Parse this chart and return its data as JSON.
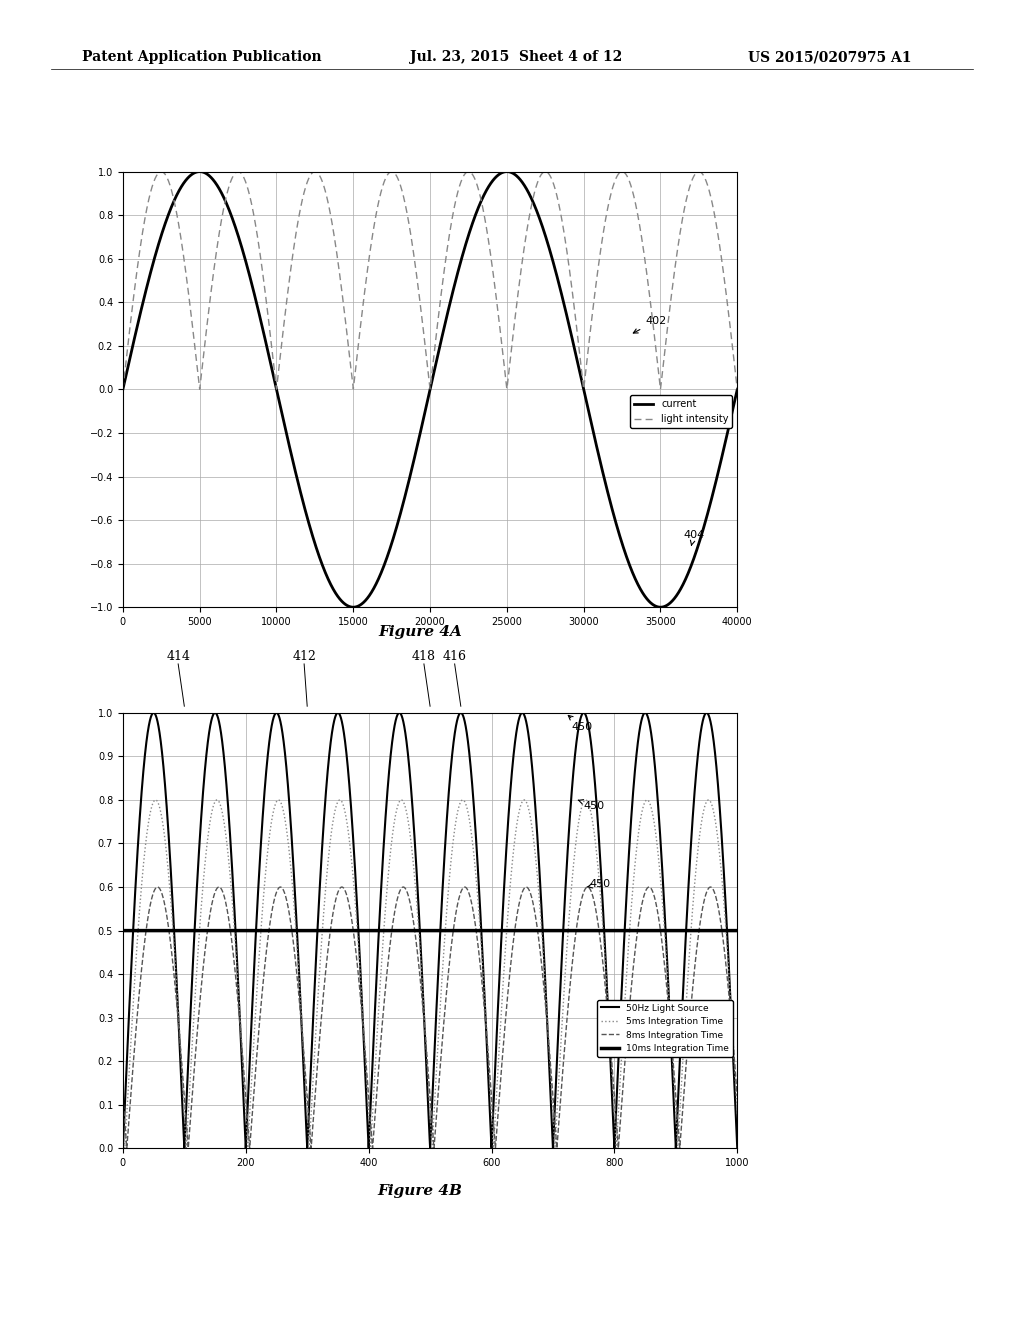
{
  "header_left": "Patent Application Publication",
  "header_mid": "Jul. 23, 2015  Sheet 4 of 12",
  "header_right": "US 2015/0207975 A1",
  "fig4a_title": "Figure 4A",
  "fig4b_title": "Figure 4B",
  "fig4a_xlim": [
    0,
    40000
  ],
  "fig4a_ylim": [
    -1,
    1
  ],
  "fig4a_xticks": [
    0,
    5000,
    10000,
    15000,
    20000,
    25000,
    30000,
    35000,
    40000
  ],
  "fig4a_yticks": [
    -1,
    -0.8,
    -0.6,
    -0.4,
    -0.2,
    0,
    0.2,
    0.4,
    0.6,
    0.8,
    1
  ],
  "fig4a_legend": [
    "current",
    "light intensity"
  ],
  "fig4a_label_402": "402",
  "fig4a_label_404": "404",
  "fig4b_xlim": [
    0,
    1000
  ],
  "fig4b_ylim": [
    0,
    1
  ],
  "fig4b_xticks": [
    0,
    200,
    400,
    600,
    800,
    1000
  ],
  "fig4b_yticks": [
    0,
    0.1,
    0.2,
    0.3,
    0.4,
    0.5,
    0.6,
    0.7,
    0.8,
    0.9,
    1
  ],
  "fig4b_legend": [
    "50Hz Light Source",
    "5ms Integration Time",
    "8ms Integration Time",
    "10ms Integration Time"
  ],
  "fig4b_label_414": "414",
  "fig4b_label_412": "412",
  "fig4b_label_418": "418",
  "fig4b_label_416": "416",
  "fig4b_label_450": "450",
  "bg_color": "#ffffff",
  "plot_bg": "#ffffff",
  "grid_color": "#aaaaaa",
  "current_color": "#000000",
  "light_intensity_color": "#888888",
  "source_50hz_color": "#000000",
  "int_5ms_color": "#888888",
  "int_8ms_color": "#555555",
  "int_10ms_color": "#000000"
}
